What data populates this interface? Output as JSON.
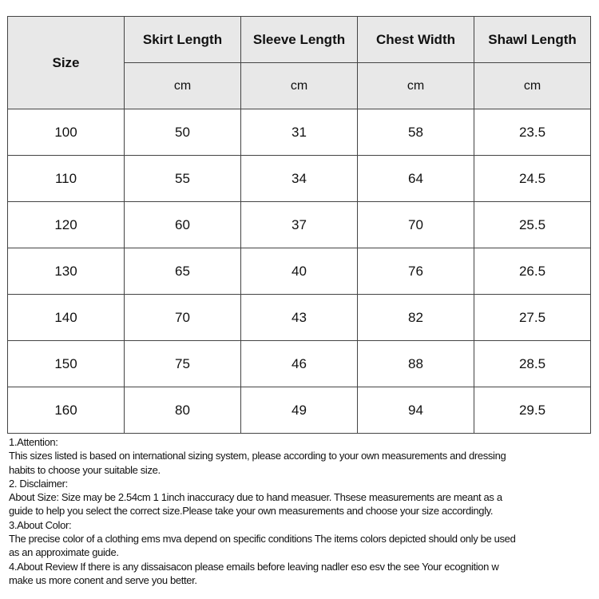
{
  "table": {
    "size_header": "Size",
    "columns": [
      "Skirt Length",
      "Sleeve Length",
      "Chest Width",
      "Shawl Length"
    ],
    "units": [
      "cm",
      "cm",
      "cm",
      "cm"
    ],
    "rows": [
      [
        "100",
        "50",
        "31",
        "58",
        "23.5"
      ],
      [
        "110",
        "55",
        "34",
        "64",
        "24.5"
      ],
      [
        "120",
        "60",
        "37",
        "70",
        "25.5"
      ],
      [
        "130",
        "65",
        "40",
        "76",
        "26.5"
      ],
      [
        "140",
        "70",
        "43",
        "82",
        "27.5"
      ],
      [
        "150",
        "75",
        "46",
        "88",
        "28.5"
      ],
      [
        "160",
        "80",
        "49",
        "94",
        "29.5"
      ]
    ]
  },
  "notes": [
    "1.Attention:",
    "This sizes listed is based on international sizing system, please according to your own measurements and dressing",
    "habits to choose your suitable size.",
    "2. Disclaimer:",
    "About Size: Size may be 2.54cm 1 1inch inaccuracy due to hand measuer. Thsese measurements are meant as a",
    "guide to help you select the correct size.Please take your own measurements and choose your size accordingly.",
    "3.About Color:",
    "The precise color of a clothing ems mva depend on specific conditions The items colors depicted should only be   used",
    "as an approximate guide.",
    "4.About Review If there is  any dissaisacon please emails before leaving nadler eso esv the see Your ecognition w",
    "make us more conent and serve you better."
  ]
}
